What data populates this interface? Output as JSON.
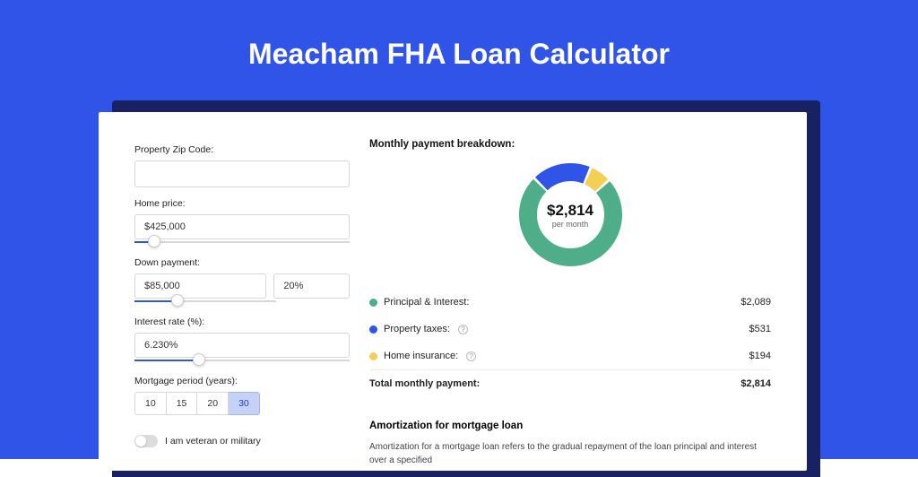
{
  "colors": {
    "page_bg": "#3054e8",
    "shadow_bg": "#182161",
    "card_bg": "#ffffff",
    "accent": "#3054e8",
    "period_active_bg": "#c6d1f8",
    "period_active_text": "#2540c4",
    "slice_green": "#4fae8a",
    "slice_blue": "#3054e8",
    "slice_yellow": "#f3cf56"
  },
  "title": "Meacham FHA Loan Calculator",
  "form": {
    "zip": {
      "label": "Property Zip Code:",
      "value": ""
    },
    "home_price": {
      "label": "Home price:",
      "value": "$425,000",
      "slider_pct": 9
    },
    "down_payment": {
      "label": "Down payment:",
      "amount": "$85,000",
      "percent": "20%",
      "slider_pct": 20
    },
    "interest_rate": {
      "label": "Interest rate (%):",
      "value": "6.230%",
      "slider_pct": 30
    },
    "mortgage_period": {
      "label": "Mortgage period (years):",
      "options": [
        "10",
        "15",
        "20",
        "30"
      ],
      "selected": "30"
    },
    "veteran": {
      "label": "I am veteran or military",
      "checked": false
    }
  },
  "breakdown": {
    "heading": "Monthly payment breakdown:",
    "donut": {
      "amount": "$2,814",
      "sub": "per month",
      "slices": [
        {
          "key": "principal_interest",
          "pct": 74.2,
          "color": "#4fae8a"
        },
        {
          "key": "property_taxes",
          "pct": 18.9,
          "color": "#3054e8"
        },
        {
          "key": "home_insurance",
          "pct": 6.9,
          "color": "#f3cf56"
        }
      ],
      "start_angle": -42
    },
    "items": [
      {
        "label": "Principal & Interest:",
        "amount": "$2,089",
        "color": "#4fae8a",
        "help": false
      },
      {
        "label": "Property taxes:",
        "amount": "$531",
        "color": "#3054e8",
        "help": true
      },
      {
        "label": "Home insurance:",
        "amount": "$194",
        "color": "#f3cf56",
        "help": true
      }
    ],
    "total": {
      "label": "Total monthly payment:",
      "amount": "$2,814"
    }
  },
  "amortization": {
    "heading": "Amortization for mortgage loan",
    "text": "Amortization for a mortgage loan refers to the gradual repayment of the loan principal and interest over a specified"
  }
}
